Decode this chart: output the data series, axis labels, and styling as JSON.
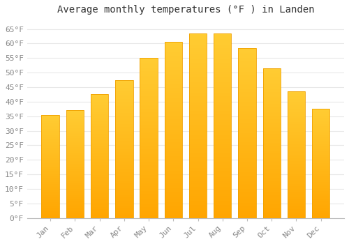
{
  "title": "Average monthly temperatures (°F ) in Landen",
  "months": [
    "Jan",
    "Feb",
    "Mar",
    "Apr",
    "May",
    "Jun",
    "Jul",
    "Aug",
    "Sep",
    "Oct",
    "Nov",
    "Dec"
  ],
  "values": [
    35.5,
    37.0,
    42.5,
    47.5,
    55.0,
    60.5,
    63.5,
    63.5,
    58.5,
    51.5,
    43.5,
    37.5
  ],
  "bar_color_top": "#FFCC33",
  "bar_color_bottom": "#FFA500",
  "bar_edge_color": "#F0A000",
  "background_color": "#FFFFFF",
  "plot_bg_color": "#FFFFFF",
  "grid_color": "#E8E8E8",
  "ylim": [
    0,
    68
  ],
  "ytick_step": 5,
  "title_fontsize": 10,
  "tick_fontsize": 8,
  "tick_color": "#888888",
  "title_color": "#333333"
}
